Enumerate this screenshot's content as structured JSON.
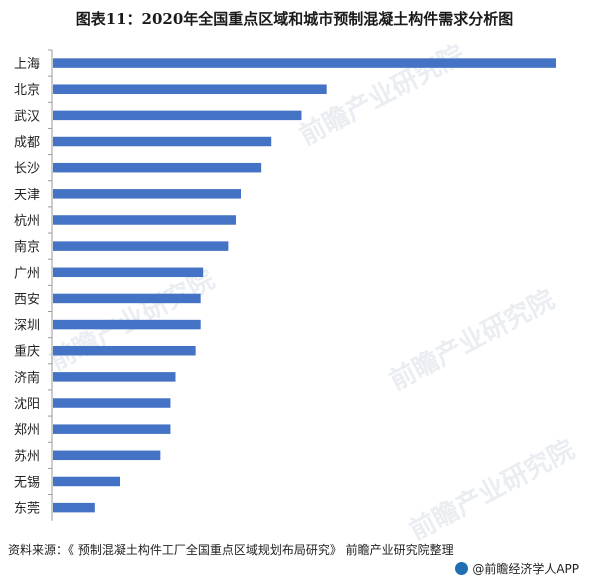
{
  "title": "图表11：2020年全国重点区域和城市预制混凝土构件需求分析图",
  "chart_data": {
    "type": "bar",
    "orientation": "horizontal",
    "categories": [
      "上海",
      "北京",
      "武汉",
      "成都",
      "长沙",
      "天津",
      "杭州",
      "南京",
      "广州",
      "西安",
      "深圳",
      "重庆",
      "济南",
      "沈阳",
      "郑州",
      "苏州",
      "无锡",
      "东莞"
    ],
    "values": [
      100,
      54.5,
      49.5,
      43.5,
      41.5,
      37.5,
      36.5,
      35,
      30,
      29.5,
      29.5,
      28.5,
      24.5,
      23.5,
      23.5,
      21.5,
      13.5,
      8.5
    ],
    "value_unit": "relative",
    "xlim": [
      0,
      100
    ],
    "bar_color": "#4472c4",
    "grid": false,
    "legend": "none"
  },
  "watermark": {
    "text": "前瞻产业研究院"
  },
  "footer": {
    "source": "资料来源：《 预制混凝土构件工厂全国重点区域规划布局研究》 前瞻产业研究院整理",
    "brand": "@前瞻经济学人APP"
  }
}
